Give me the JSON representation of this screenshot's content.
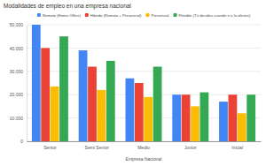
{
  "chart_data": {
    "type": "bar",
    "title": "Modalidades de empleo en una empresa nacional",
    "xlabel": "Empresa Nacional",
    "categories": [
      "Senior",
      "Semi Senior",
      "Medio",
      "Junior",
      "Inicial"
    ],
    "series": [
      {
        "name": "Remoto (Home Office)",
        "color": "#4285f4",
        "values": [
          50000,
          39000,
          27000,
          20000,
          17000
        ]
      },
      {
        "name": "Hibrido (Remoto + Presencial)",
        "color": "#ea4335",
        "values": [
          40000,
          32000,
          25000,
          20000,
          20000
        ]
      },
      {
        "name": "Presencial",
        "color": "#fbbc04",
        "values": [
          23500,
          22000,
          19000,
          15000,
          12000
        ]
      },
      {
        "name": "Flexible (Tú decides cuando ir a la oficina)",
        "color": "#34a853",
        "values": [
          45000,
          34500,
          32000,
          21000,
          20000
        ]
      }
    ],
    "ylim": [
      0,
      50000
    ],
    "yticks": [
      0,
      {
        "value": 10000,
        "label": "10.000"
      },
      {
        "value": 20000,
        "label": "20.000"
      },
      {
        "value": 30000,
        "label": "30.000"
      },
      {
        "value": 40000,
        "label": "40.000"
      },
      {
        "value": 50000,
        "label": "50.000"
      }
    ],
    "grid": true,
    "legend": "top"
  }
}
